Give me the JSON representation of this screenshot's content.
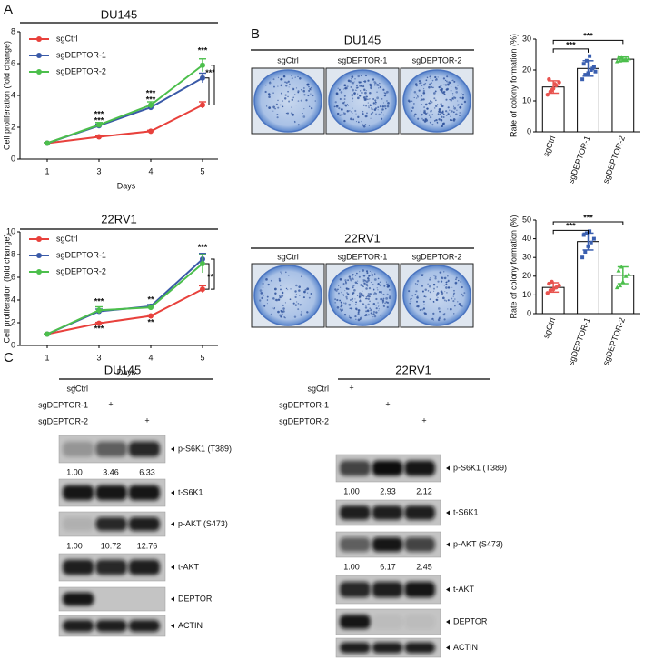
{
  "panels": {
    "a": "A",
    "b": "B",
    "c": "C"
  },
  "chart_data": [
    {
      "type": "line",
      "title": "DU145",
      "xlabel": "Days",
      "ylabel": "Cell proliferation (fold change)",
      "categories": [
        "1",
        "3",
        "4",
        "5"
      ],
      "ylim": [
        0,
        8
      ],
      "yticks": [
        0,
        2,
        4,
        6,
        8
      ],
      "legend": "upper left",
      "series": [
        {
          "name": "sgCtrl",
          "color": "#e8413c",
          "values": [
            1,
            1.4,
            1.75,
            3.4
          ],
          "errors": [
            0.03,
            0.05,
            0.06,
            0.2
          ]
        },
        {
          "name": "sgDEPTOR-1",
          "color": "#3a5aa8",
          "values": [
            1,
            2.1,
            3.25,
            5.1
          ],
          "errors": [
            0.03,
            0.1,
            0.1,
            0.3
          ]
        },
        {
          "name": "sgDEPTOR-2",
          "color": "#4cbf4c",
          "values": [
            1,
            2.15,
            3.4,
            5.9
          ],
          "errors": [
            0.03,
            0.15,
            0.2,
            0.4
          ]
        }
      ],
      "annotations": [
        "***",
        "***",
        "***",
        "***",
        "***",
        "***"
      ]
    },
    {
      "type": "line",
      "title": "22RV1",
      "xlabel": "Days",
      "ylabel": "Cell proliferation (fold change)",
      "categories": [
        "1",
        "3",
        "4",
        "5"
      ],
      "ylim": [
        0,
        10
      ],
      "yticks": [
        0,
        2,
        4,
        6,
        8,
        10
      ],
      "legend": "upper left",
      "series": [
        {
          "name": "sgCtrl",
          "color": "#e8413c",
          "values": [
            1,
            1.95,
            2.6,
            4.95
          ],
          "errors": [
            0.03,
            0.08,
            0.08,
            0.3
          ]
        },
        {
          "name": "sgDEPTOR-1",
          "color": "#3a5aa8",
          "values": [
            1,
            3.0,
            3.45,
            7.6
          ],
          "errors": [
            0.03,
            0.2,
            0.15,
            0.5
          ]
        },
        {
          "name": "sgDEPTOR-2",
          "color": "#4cbf4c",
          "values": [
            1,
            3.1,
            3.35,
            7.2
          ],
          "errors": [
            0.03,
            0.3,
            0.2,
            0.8
          ]
        }
      ],
      "annotations": [
        "***",
        "***",
        "**",
        "**",
        "***",
        "**"
      ]
    },
    {
      "type": "bar",
      "ylabel": "Rate of colony formation (%)",
      "categories": [
        "sgCtrl",
        "sgDEPTOR-1",
        "sgDEPTOR-2"
      ],
      "values": [
        14.5,
        20.5,
        23.5
      ],
      "errors": [
        2,
        2.5,
        0.7
      ],
      "colors": [
        "#e8534f",
        "#3a5fb0",
        "#4cbf4c"
      ],
      "points": [
        [
          12,
          13,
          14,
          15,
          16,
          17,
          13.5,
          15.5
        ],
        [
          17,
          18.5,
          19,
          20,
          21,
          22,
          23,
          24.5,
          20.5,
          19.5
        ],
        [
          22.8,
          23,
          23.3,
          23.5,
          23.7,
          24,
          23.9,
          23.2
        ]
      ],
      "ylim": [
        0,
        30
      ],
      "yticks": [
        0,
        10,
        20,
        30
      ],
      "annotations": [
        "***",
        "***"
      ]
    },
    {
      "type": "bar",
      "ylabel": "Rate of colony formation (%)",
      "categories": [
        "sgCtrl",
        "sgDEPTOR-1",
        "sgDEPTOR-2"
      ],
      "values": [
        14,
        38.5,
        20.5
      ],
      "errors": [
        2.5,
        4.5,
        4.5
      ],
      "colors": [
        "#e8534f",
        "#3a5fb0",
        "#4cbf4c"
      ],
      "points": [
        [
          11,
          12.5,
          13,
          14,
          15,
          16,
          17
        ],
        [
          30,
          33,
          36,
          38,
          40,
          42,
          43,
          44
        ],
        [
          14,
          15,
          17,
          20,
          21,
          23,
          25
        ]
      ],
      "ylim": [
        0,
        50
      ],
      "yticks": [
        0,
        10,
        20,
        30,
        40,
        50
      ],
      "annotations": [
        "***",
        "***"
      ]
    }
  ],
  "colonies": [
    {
      "title": "DU145",
      "labels": [
        "sgCtrl",
        "sgDEPTOR-1",
        "sgDEPTOR-2"
      ]
    },
    {
      "title": "22RV1",
      "labels": [
        "sgCtrl",
        "sgDEPTOR-1",
        "sgDEPTOR-2"
      ]
    }
  ],
  "blots": [
    {
      "title": "DU145",
      "conditions": [
        "sgCtrl",
        "sgDEPTOR-1",
        "sgDEPTOR-2"
      ],
      "markers": [
        "+",
        "+",
        "+"
      ],
      "bands": [
        {
          "name": "p-S6K1 (T389)",
          "quant": [
            "1.00",
            "3.46",
            "6.33"
          ]
        },
        {
          "name": "t-S6K1"
        },
        {
          "name": "p-AKT (S473)",
          "quant": [
            "1.00",
            "10.72",
            "12.76"
          ]
        },
        {
          "name": "t-AKT"
        },
        {
          "name": "DEPTOR"
        },
        {
          "name": "ACTIN"
        }
      ]
    },
    {
      "title": "22RV1",
      "conditions": [
        "sgCtrl",
        "sgDEPTOR-1",
        "sgDEPTOR-2"
      ],
      "markers": [
        "+",
        "+",
        "+"
      ],
      "bands": [
        {
          "name": "p-S6K1 (T389)",
          "quant": [
            "1.00",
            "2.93",
            "2.12"
          ]
        },
        {
          "name": "t-S6K1"
        },
        {
          "name": "p-AKT (S473)",
          "quant": [
            "1.00",
            "6.17",
            "2.45"
          ]
        },
        {
          "name": "t-AKT"
        },
        {
          "name": "DEPTOR"
        },
        {
          "name": "ACTIN"
        }
      ]
    }
  ]
}
